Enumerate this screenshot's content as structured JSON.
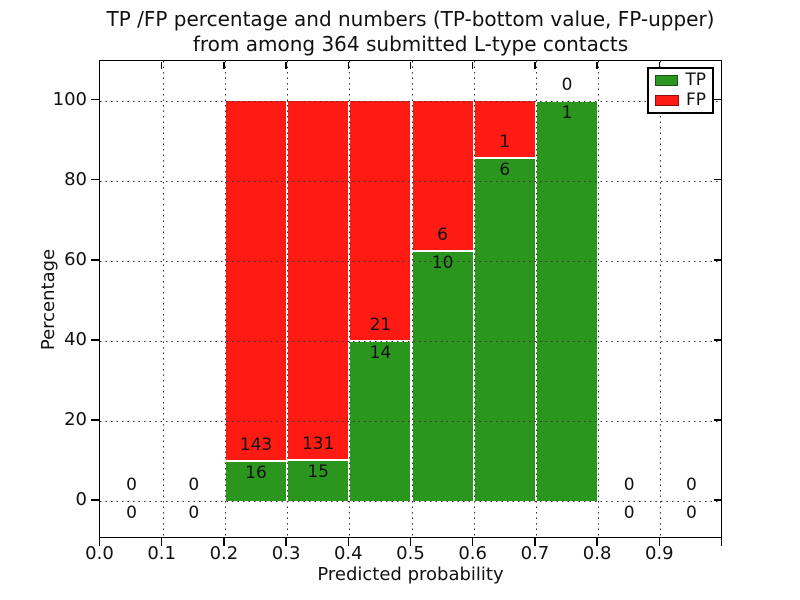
{
  "title": {
    "line1": "TP /FP percentage and numbers (TP-bottom value, FP-upper)",
    "line2": "from among 364 submitted L-type contacts"
  },
  "axes": {
    "xlabel": "Predicted probability",
    "ylabel": "Percentage",
    "xtick_labels": [
      "0.0",
      "0.1",
      "0.2",
      "0.3",
      "0.4",
      "0.5",
      "0.6",
      "0.7",
      "0.8",
      "0.9"
    ],
    "ytick_labels": [
      "0",
      "20",
      "40",
      "60",
      "80",
      "100"
    ]
  },
  "legend": {
    "items": [
      {
        "label": "TP",
        "color": "#2a961e"
      },
      {
        "label": "FP",
        "color": "#ff1b14"
      }
    ]
  },
  "colors": {
    "tp": "#2a961e",
    "fp": "#ff1b14",
    "grid": "#333333",
    "text": "#111111"
  },
  "chart_data": {
    "type": "bar",
    "subtype": "stacked-percentage-histogram",
    "title": "TP /FP percentage and numbers (TP-bottom value, FP-upper) from among 364 submitted L-type contacts",
    "xlabel": "Predicted probability",
    "ylabel": "Percentage",
    "xlim": [
      0.0,
      1.0
    ],
    "ylim": [
      -10,
      110
    ],
    "yticks": [
      0,
      20,
      40,
      60,
      80,
      100
    ],
    "xticks": [
      0.0,
      0.1,
      0.2,
      0.3,
      0.4,
      0.5,
      0.6,
      0.7,
      0.8,
      0.9
    ],
    "grid": "dotted, drawn above bars",
    "legend_position": "upper right",
    "total_contacts": 364,
    "note": "Each 0.1-wide bin stacks TP% (green, bottom) and FP% (red, top) to 100%; TP% = tp/(tp+fp)*100. Labels show raw counts: FP above boundary, TP below.",
    "bins": [
      {
        "x0": 0.0,
        "x1": 0.1,
        "tp": 0,
        "fp": 0
      },
      {
        "x0": 0.1,
        "x1": 0.2,
        "tp": 0,
        "fp": 0
      },
      {
        "x0": 0.2,
        "x1": 0.3,
        "tp": 16,
        "fp": 143
      },
      {
        "x0": 0.3,
        "x1": 0.4,
        "tp": 15,
        "fp": 131
      },
      {
        "x0": 0.4,
        "x1": 0.5,
        "tp": 14,
        "fp": 21
      },
      {
        "x0": 0.5,
        "x1": 0.6,
        "tp": 10,
        "fp": 6
      },
      {
        "x0": 0.6,
        "x1": 0.7,
        "tp": 6,
        "fp": 1
      },
      {
        "x0": 0.7,
        "x1": 0.8,
        "tp": 1,
        "fp": 0
      },
      {
        "x0": 0.8,
        "x1": 0.9,
        "tp": 0,
        "fp": 0
      },
      {
        "x0": 0.9,
        "x1": 1.0,
        "tp": 0,
        "fp": 0
      }
    ]
  }
}
